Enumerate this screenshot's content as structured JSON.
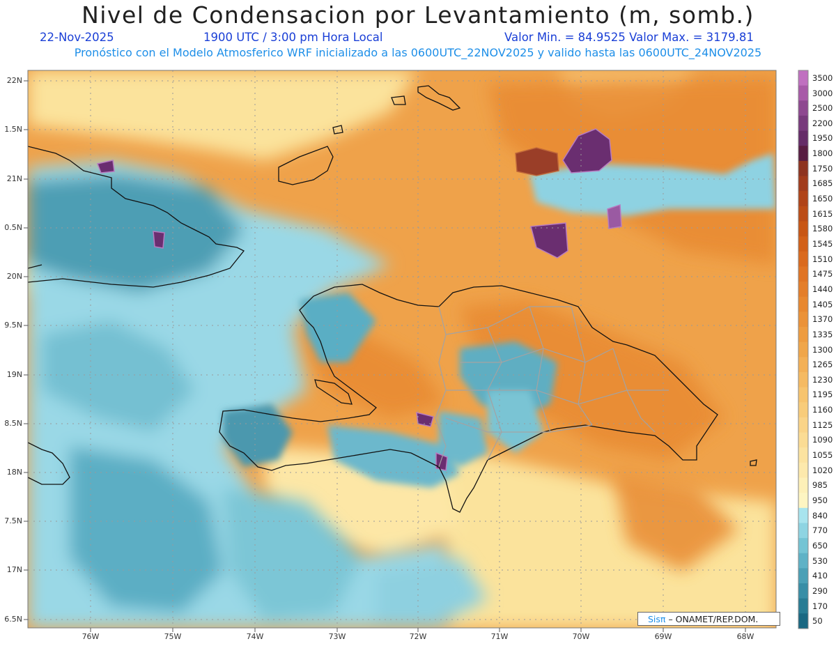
{
  "header": {
    "title": "Nivel de Condensacion por Levantamiento (m, somb.)",
    "date": "22-Nov-2025",
    "time": "1900 UTC / 3:00 pm Hora Local",
    "minmax": "Valor Min. = 84.9525   Valor Max. = 3179.81",
    "forecast": "Pronóstico con el Modelo Atmosferico WRF inicializado a las 0600UTC_22NOV2025 y valido hasta las  0600UTC_24NOV2025"
  },
  "axes": {
    "lat_labels": [
      "22N",
      "1.5N",
      "21N",
      "0.5N",
      "20N",
      "9.5N",
      "19N",
      "8.5N",
      "18N",
      "7.5N",
      "17N",
      "6.5N"
    ],
    "lon_labels": [
      "76W",
      "75W",
      "74W",
      "73W",
      "72W",
      "71W",
      "70W",
      "69W",
      "68W"
    ]
  },
  "colorbar": {
    "labels": [
      "3500",
      "3000",
      "2500",
      "2200",
      "1950",
      "1800",
      "1750",
      "1685",
      "1650",
      "1615",
      "1580",
      "1545",
      "1510",
      "1475",
      "1440",
      "1405",
      "1370",
      "1335",
      "1300",
      "1265",
      "1230",
      "1195",
      "1160",
      "1125",
      "1090",
      "1055",
      "1020",
      "985",
      "950",
      "840",
      "770",
      "650",
      "530",
      "410",
      "290",
      "170",
      "50"
    ],
    "colors": [
      "#c070c0",
      "#a85aa8",
      "#8e4890",
      "#783a7c",
      "#652c68",
      "#581d42",
      "#8e3420",
      "#a13c1c",
      "#b04318",
      "#bc4c16",
      "#c85614",
      "#d26018",
      "#da6a1e",
      "#e07424",
      "#e47e2a",
      "#e88830",
      "#eb9238",
      "#ee9c40",
      "#f0a64a",
      "#f3b056",
      "#f5ba62",
      "#f7c46e",
      "#f8cc7a",
      "#fad488",
      "#fbdc94",
      "#fce3a0",
      "#fde9ac",
      "#fef0b8",
      "#fef5c2",
      "#a8e4ee",
      "#8ed4e2",
      "#74c4d4",
      "#5eb2c6",
      "#4aa0b6",
      "#388ea6",
      "#287c94",
      "#1a6882"
    ]
  },
  "credit": {
    "sis": "Sisπ",
    "text": "– ONAMET/REP.DOM."
  }
}
